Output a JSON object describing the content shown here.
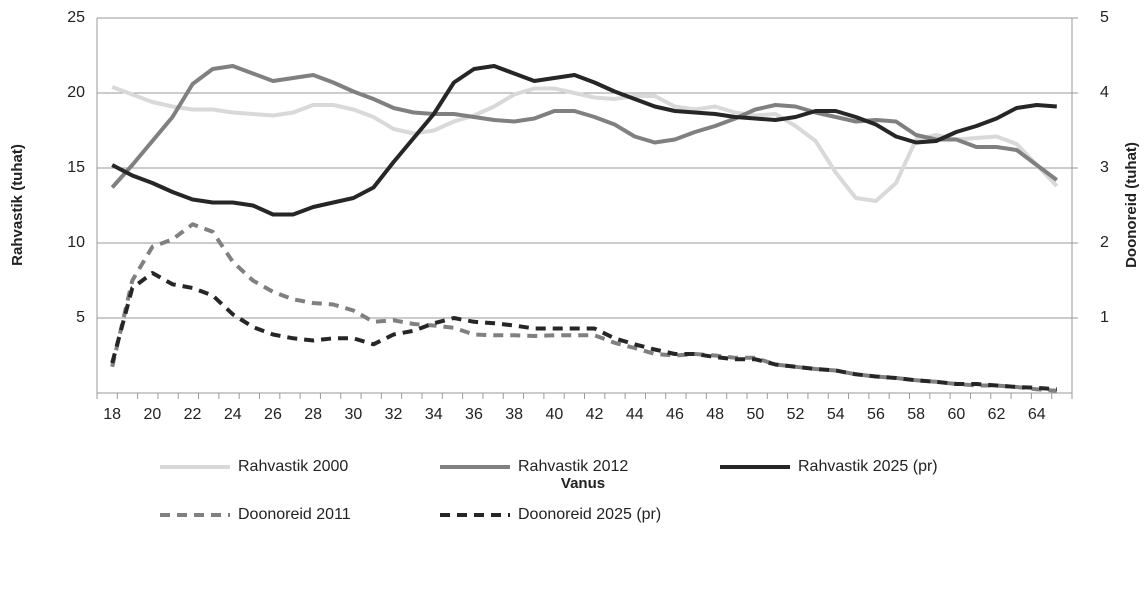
{
  "chart_data": {
    "type": "line",
    "x_label": "Vanus",
    "y_label": "Rahvastik (tuhat)",
    "y2_label": "Doonoreid (tuhat)",
    "categories": [
      "18",
      null,
      "20",
      null,
      "22",
      null,
      "24",
      null,
      "26",
      null,
      "28",
      null,
      "30",
      null,
      "32",
      null,
      "34",
      null,
      "36",
      null,
      "38",
      null,
      "40",
      null,
      "42",
      null,
      "44",
      null,
      "46",
      null,
      "48",
      null,
      "50",
      null,
      "52",
      null,
      "54",
      null,
      "56",
      null,
      "58",
      null,
      "60",
      null,
      "62",
      null,
      "64",
      null
    ],
    "ylim": [
      0,
      25
    ],
    "yticks": [
      5,
      10,
      15,
      20,
      25
    ],
    "y2lim": [
      0,
      5
    ],
    "y2ticks": [
      1,
      2,
      3,
      4,
      5
    ],
    "grid": true,
    "legend": "bottom",
    "series": [
      {
        "name": "Rahvastik 2000",
        "color": "#d9d9d9",
        "dashed": false,
        "values": [
          20.4,
          19.9,
          19.4,
          19.1,
          18.9,
          18.9,
          18.7,
          18.6,
          18.5,
          18.7,
          19.2,
          19.2,
          18.9,
          18.4,
          17.6,
          17.3,
          17.5,
          18.1,
          18.5,
          19.1,
          19.9,
          20.3,
          20.3,
          20,
          19.7,
          19.6,
          19.8,
          19.8,
          19.1,
          18.9,
          19.1,
          18.7,
          18.5,
          18.6,
          17.8,
          16.8,
          14.7,
          13,
          12.8,
          14,
          16.9,
          17.2,
          16.9,
          17,
          17.1,
          16.6,
          15.2,
          13.8
        ]
      },
      {
        "name": "Rahvastik 2012",
        "color": "#808080",
        "dashed": false,
        "values": [
          13.7,
          15.2,
          16.8,
          18.4,
          20.6,
          21.6,
          21.8,
          21.3,
          20.8,
          21,
          21.2,
          20.7,
          20.1,
          19.6,
          19,
          18.7,
          18.6,
          18.6,
          18.4,
          18.2,
          18.1,
          18.3,
          18.8,
          18.8,
          18.4,
          17.9,
          17.1,
          16.7,
          16.9,
          17.4,
          17.8,
          18.3,
          18.9,
          19.2,
          19.1,
          18.7,
          18.4,
          18.1,
          18.2,
          18.1,
          17.2,
          16.9,
          16.9,
          16.4,
          16.4,
          16.2,
          15.2,
          14.2
        ]
      },
      {
        "name": "Rahvastik 2025 (pr)",
        "color": "#262626",
        "dashed": false,
        "values": [
          15.2,
          14.5,
          14,
          13.4,
          12.9,
          12.7,
          12.7,
          12.5,
          11.9,
          11.9,
          12.4,
          12.7,
          13,
          13.7,
          15.4,
          17,
          18.6,
          20.7,
          21.6,
          21.8,
          21.3,
          20.8,
          21,
          21.2,
          20.7,
          20.1,
          19.6,
          19.1,
          18.8,
          18.7,
          18.6,
          18.4,
          18.3,
          18.2,
          18.4,
          18.8,
          18.8,
          18.4,
          17.9,
          17.1,
          16.7,
          16.8,
          17.4,
          17.8,
          18.3,
          19,
          19.2,
          19.1
        ]
      },
      {
        "name": "Doonoreid 2011",
        "color": "#808080",
        "dashed": true,
        "axis": "y2",
        "values": [
          0.35,
          1.5,
          1.95,
          2.05,
          2.25,
          2.15,
          1.75,
          1.5,
          1.35,
          1.25,
          1.2,
          1.18,
          1.1,
          0.95,
          0.97,
          0.92,
          0.9,
          0.87,
          0.78,
          0.77,
          0.77,
          0.76,
          0.77,
          0.77,
          0.77,
          0.67,
          0.6,
          0.52,
          0.5,
          0.52,
          0.5,
          0.47,
          0.47,
          0.38,
          0.35,
          0.32,
          0.3,
          0.25,
          0.22,
          0.2,
          0.17,
          0.15,
          0.12,
          0.1,
          0.1,
          0.08,
          0.05,
          0.03
        ]
      },
      {
        "name": "Doonoreid 2025 (pr)",
        "color": "#262626",
        "dashed": true,
        "axis": "y2",
        "values": [
          0.4,
          1.4,
          1.6,
          1.45,
          1.4,
          1.3,
          1.05,
          0.88,
          0.78,
          0.73,
          0.7,
          0.73,
          0.73,
          0.65,
          0.78,
          0.83,
          0.93,
          1.0,
          0.95,
          0.93,
          0.9,
          0.86,
          0.86,
          0.86,
          0.86,
          0.73,
          0.65,
          0.58,
          0.52,
          0.52,
          0.48,
          0.45,
          0.45,
          0.38,
          0.35,
          0.32,
          0.3,
          0.25,
          0.22,
          0.2,
          0.17,
          0.15,
          0.12,
          0.12,
          0.1,
          0.08,
          0.07,
          0.05
        ]
      }
    ]
  }
}
